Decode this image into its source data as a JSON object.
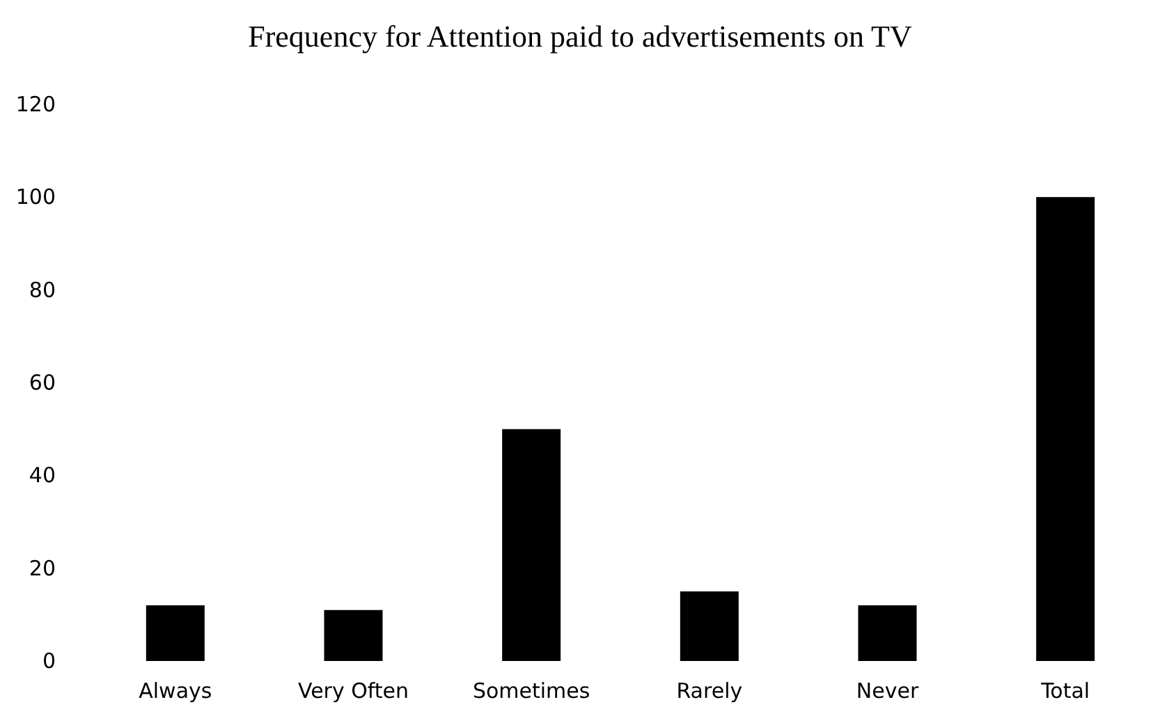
{
  "chart_data": {
    "type": "bar",
    "title": "Frequency for Attention paid to advertisements on TV",
    "categories": [
      "Always",
      "Very Often",
      "Sometimes",
      "Rarely",
      "Never",
      "Total"
    ],
    "values": [
      12,
      11,
      50,
      15,
      12,
      100
    ],
    "color": "#000000",
    "ylim": [
      0,
      120
    ],
    "yticks": [
      0,
      20,
      40,
      60,
      80,
      100,
      120
    ],
    "grid": false
  }
}
